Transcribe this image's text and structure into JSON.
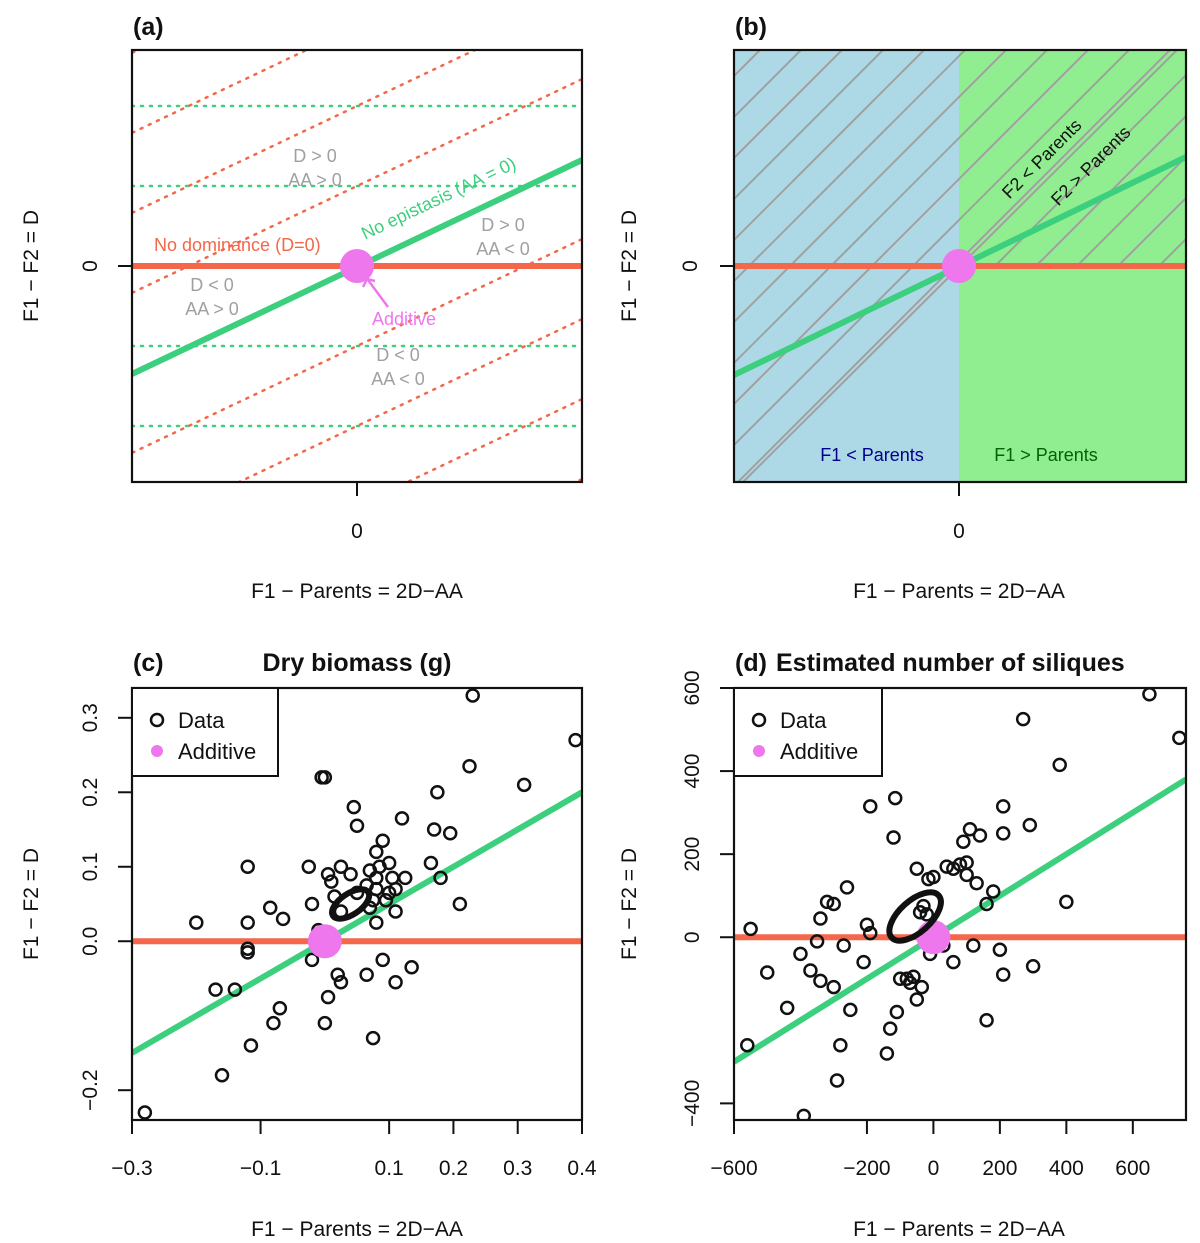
{
  "colors": {
    "red": "#f4674a",
    "green": "#3ccf7e",
    "magenta": "#ee77ee",
    "gray": "#a0a0a0",
    "lightblue": "#add8e6",
    "lightgreen": "#90ee90",
    "navy": "#00008b",
    "darkgreen": "#006400"
  },
  "axis_labels": {
    "x": "F1 − Parents = 2D−AA",
    "y": "F1 − F2 = D"
  },
  "panel_a": {
    "letter": "(a)",
    "x_tick": "0",
    "y_tick": "0",
    "labels": {
      "no_dominance": "No dominance (D=0)",
      "no_epistasis": "No epistasis (AA = 0)",
      "additive": "Additive",
      "q_tl_1": "D > 0",
      "q_tl_2": "AA > 0",
      "q_tr_1": "D > 0",
      "q_tr_2": "AA < 0",
      "q_bl_1": "D < 0",
      "q_bl_2": "AA > 0",
      "q_br_1": "D < 0",
      "q_br_2": "AA < 0"
    }
  },
  "panel_b": {
    "letter": "(b)",
    "x_tick": "0",
    "y_tick": "0",
    "labels": {
      "f1_less": "F1 < Parents",
      "f1_greater": "F1 > Parents",
      "f2_less": "F2 < Parents",
      "f2_greater": "F2 > Parents"
    }
  },
  "chart_data": [
    {
      "type": "scatter",
      "panel": "(c)",
      "title": "Dry biomass (g)",
      "xlabel": "F1 − Parents = 2D−AA",
      "ylabel": "F1 − F2 = D",
      "xlim": [
        -0.3,
        0.4
      ],
      "ylim": [
        -0.24,
        0.34
      ],
      "x_ticks": [
        -0.3,
        -0.1,
        0.1,
        0.2,
        0.3,
        0.4
      ],
      "x_tick_labels": [
        "−0.3",
        "−0.1",
        "0.1",
        "0.2",
        "0.3",
        "0.4"
      ],
      "y_ticks": [
        -0.2,
        0.0,
        0.1,
        0.2,
        0.3
      ],
      "y_tick_labels": [
        "−0.2",
        "0.0",
        "0.1",
        "0.2",
        "0.3"
      ],
      "legend": {
        "position": "top-left",
        "entries": [
          "Data",
          "Additive"
        ]
      },
      "lines": {
        "no_dominance_slope": 0,
        "no_epistasis_slope": 0.5
      },
      "additive_point": [
        0,
        0
      ],
      "ellipse": {
        "cx": 0.04,
        "cy": 0.05,
        "rx": 0.033,
        "ry": 0.014,
        "angle_deg": 34
      },
      "series": [
        {
          "name": "Data",
          "points": [
            [
              -0.28,
              -0.23
            ],
            [
              -0.2,
              0.025
            ],
            [
              -0.17,
              -0.065
            ],
            [
              -0.16,
              -0.18
            ],
            [
              -0.14,
              -0.065
            ],
            [
              -0.12,
              0.1
            ],
            [
              -0.12,
              -0.015
            ],
            [
              -0.12,
              -0.01
            ],
            [
              -0.12,
              0.025
            ],
            [
              -0.115,
              -0.14
            ],
            [
              -0.085,
              0.045
            ],
            [
              -0.08,
              -0.11
            ],
            [
              -0.07,
              -0.09
            ],
            [
              -0.065,
              0.03
            ],
            [
              -0.025,
              0.1
            ],
            [
              -0.02,
              0.05
            ],
            [
              -0.02,
              -0.025
            ],
            [
              -0.01,
              0.015
            ],
            [
              -0.005,
              0.22
            ],
            [
              0.0,
              -0.11
            ],
            [
              0.0,
              0.22
            ],
            [
              0.005,
              -0.075
            ],
            [
              0.005,
              0.09
            ],
            [
              0.01,
              0.08
            ],
            [
              0.015,
              0.06
            ],
            [
              0.02,
              -0.045
            ],
            [
              0.025,
              0.04
            ],
            [
              0.025,
              0.1
            ],
            [
              0.025,
              -0.055
            ],
            [
              0.04,
              0.09
            ],
            [
              0.045,
              0.18
            ],
            [
              0.05,
              0.155
            ],
            [
              0.05,
              0.065
            ],
            [
              0.065,
              0.075
            ],
            [
              0.065,
              -0.045
            ],
            [
              0.07,
              0.095
            ],
            [
              0.07,
              0.045
            ],
            [
              0.075,
              0.055
            ],
            [
              0.075,
              -0.13
            ],
            [
              0.08,
              0.12
            ],
            [
              0.08,
              0.085
            ],
            [
              0.08,
              0.07
            ],
            [
              0.08,
              0.025
            ],
            [
              0.085,
              0.1
            ],
            [
              0.09,
              0.135
            ],
            [
              0.09,
              -0.025
            ],
            [
              0.095,
              0.055
            ],
            [
              0.1,
              0.065
            ],
            [
              0.1,
              0.105
            ],
            [
              0.105,
              0.085
            ],
            [
              0.11,
              0.07
            ],
            [
              0.11,
              0.04
            ],
            [
              0.11,
              -0.055
            ],
            [
              0.12,
              0.165
            ],
            [
              0.125,
              0.085
            ],
            [
              0.135,
              -0.035
            ],
            [
              0.165,
              0.105
            ],
            [
              0.17,
              0.15
            ],
            [
              0.175,
              0.2
            ],
            [
              0.18,
              0.085
            ],
            [
              0.195,
              0.145
            ],
            [
              0.21,
              0.05
            ],
            [
              0.225,
              0.235
            ],
            [
              0.23,
              0.33
            ],
            [
              0.31,
              0.21
            ],
            [
              0.39,
              0.27
            ]
          ]
        }
      ]
    },
    {
      "type": "scatter",
      "panel": "(d)",
      "title": "Estimated number of siliques",
      "xlabel": "F1 − Parents = 2D−AA",
      "ylabel": "F1 − F2 = D",
      "xlim": [
        -600,
        760
      ],
      "ylim": [
        -440,
        600
      ],
      "x_ticks": [
        -600,
        -200,
        0,
        200,
        400,
        600
      ],
      "x_tick_labels": [
        "−600",
        "−200",
        "0",
        "200",
        "400",
        "600"
      ],
      "y_ticks": [
        -400,
        0,
        200,
        400,
        600
      ],
      "y_tick_labels": [
        "−400",
        "0",
        "200",
        "400",
        "600"
      ],
      "legend": {
        "position": "top-left",
        "entries": [
          "Data",
          "Additive"
        ]
      },
      "lines": {
        "no_dominance_slope": 0,
        "no_epistasis_slope": 0.5
      },
      "additive_point": [
        0,
        0
      ],
      "ellipse": {
        "cx": -55,
        "cy": 50,
        "rx": 95,
        "ry": 38,
        "angle_deg": 42
      },
      "series": [
        {
          "name": "Data",
          "points": [
            [
              -560,
              -260
            ],
            [
              -550,
              20
            ],
            [
              -500,
              -85
            ],
            [
              -440,
              -170
            ],
            [
              -400,
              -40
            ],
            [
              -390,
              -430
            ],
            [
              -370,
              -80
            ],
            [
              -350,
              -10
            ],
            [
              -340,
              -105
            ],
            [
              -340,
              45
            ],
            [
              -320,
              85
            ],
            [
              -300,
              -120
            ],
            [
              -300,
              80
            ],
            [
              -290,
              -345
            ],
            [
              -280,
              -260
            ],
            [
              -270,
              -20
            ],
            [
              -260,
              120
            ],
            [
              -250,
              -175
            ],
            [
              -210,
              -60
            ],
            [
              -200,
              30
            ],
            [
              -190,
              10
            ],
            [
              -190,
              315
            ],
            [
              -140,
              -280
            ],
            [
              -130,
              -220
            ],
            [
              -120,
              240
            ],
            [
              -115,
              335
            ],
            [
              -110,
              -180
            ],
            [
              -100,
              -100
            ],
            [
              -80,
              -100
            ],
            [
              -70,
              -110
            ],
            [
              -60,
              -95
            ],
            [
              -50,
              -150
            ],
            [
              -50,
              165
            ],
            [
              -40,
              60
            ],
            [
              -35,
              -120
            ],
            [
              -30,
              75
            ],
            [
              -20,
              55
            ],
            [
              -15,
              140
            ],
            [
              -10,
              -40
            ],
            [
              0,
              145
            ],
            [
              30,
              -20
            ],
            [
              40,
              170
            ],
            [
              60,
              -60
            ],
            [
              60,
              165
            ],
            [
              80,
              175
            ],
            [
              90,
              230
            ],
            [
              100,
              150
            ],
            [
              100,
              180
            ],
            [
              110,
              260
            ],
            [
              120,
              -20
            ],
            [
              130,
              130
            ],
            [
              140,
              245
            ],
            [
              160,
              80
            ],
            [
              160,
              -200
            ],
            [
              180,
              110
            ],
            [
              200,
              -30
            ],
            [
              210,
              315
            ],
            [
              210,
              -90
            ],
            [
              210,
              250
            ],
            [
              270,
              525
            ],
            [
              290,
              270
            ],
            [
              300,
              -70
            ],
            [
              380,
              415
            ],
            [
              400,
              85
            ],
            [
              650,
              585
            ],
            [
              740,
              480
            ]
          ]
        }
      ]
    }
  ]
}
